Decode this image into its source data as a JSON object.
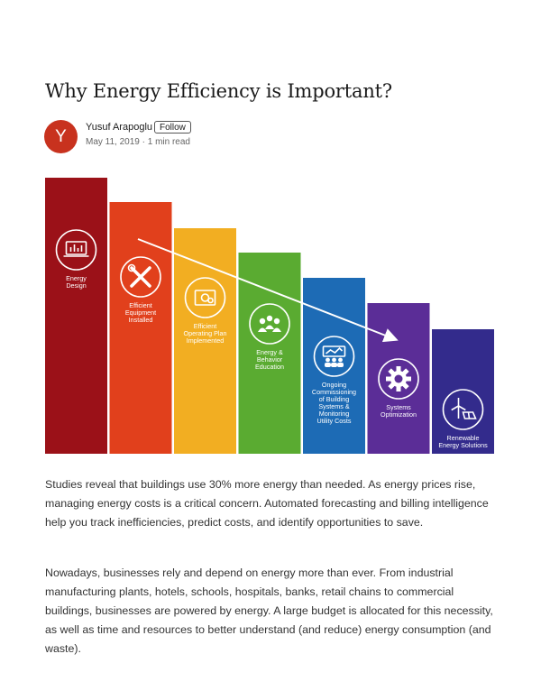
{
  "article": {
    "title": "Why Energy Efficiency is Important?",
    "author": {
      "initial": "Y",
      "name": "Yusuf Arapoglu",
      "follow_label": "Follow",
      "date": "May 11, 2019",
      "separator": " · ",
      "read_time": "1 min read"
    },
    "paragraphs": [
      "Studies reveal that buildings use 30% more energy than needed. As energy prices rise, managing energy costs is a critical concern. Automated forecasting and billing intelligence help you track inefficiencies, predict costs, and identify opportunities to save.",
      "Nowadays, businesses rely and depend on energy more than ever. From industrial manufacturing plants, hotels, schools, hospitals, banks, retail chains to commercial buildings, businesses are powered by energy. A large budget is allocated for this necessity, as well as time and resources to better understand (and reduce) energy consumption (and waste)."
    ]
  },
  "infographic": {
    "steps": [
      {
        "label": "Energy\nDesign",
        "color": "#9b1118",
        "icon": "energy-design-icon"
      },
      {
        "label": "Efficient\nEquipment\nInstalled",
        "color": "#e1401c",
        "icon": "tools-icon"
      },
      {
        "label": "Efficient\nOperating Plan\nImplemented",
        "color": "#f2ae22",
        "icon": "operating-plan-icon"
      },
      {
        "label": "Energy &\nBehavior\nEducation",
        "color": "#5aab31",
        "icon": "people-icon"
      },
      {
        "label": "Ongoing\nCommissioning\nof Building\nSystems &\nMonitoring\nUtility Costs",
        "color": "#1d6bb5",
        "icon": "monitoring-icon"
      },
      {
        "label": "Systems\nOptimization",
        "color": "#5b2d97",
        "icon": "gear-icon"
      },
      {
        "label": "Renewable\nEnergy Solutions",
        "color": "#332b8c",
        "icon": "wind-solar-icon"
      }
    ]
  }
}
